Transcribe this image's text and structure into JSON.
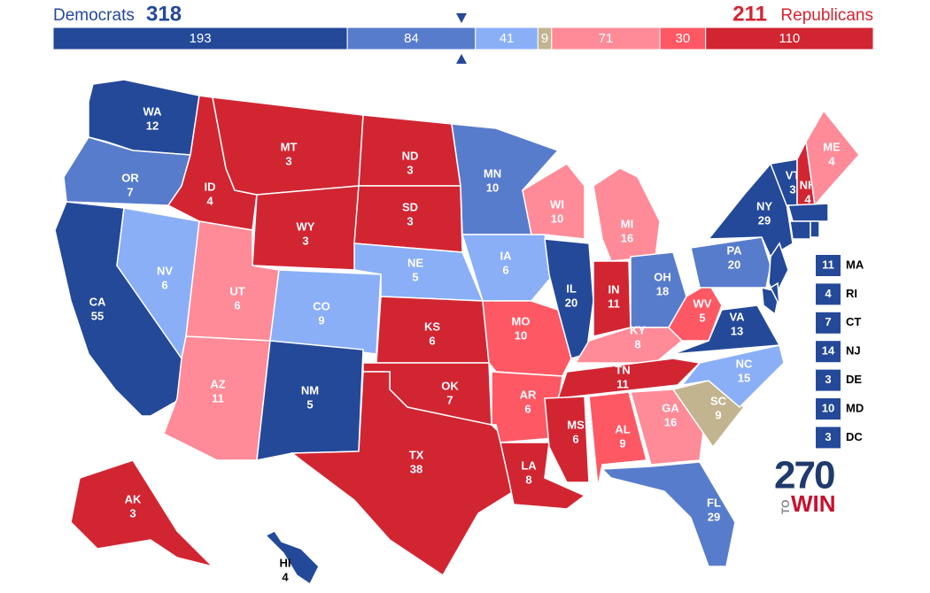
{
  "header": {
    "left_label": "Democrats",
    "left_total": 318,
    "right_total": 211,
    "right_label": "Republicans"
  },
  "bar": {
    "segments": [
      {
        "value": 193,
        "color": "#244999"
      },
      {
        "value": 84,
        "color": "#587ccc"
      },
      {
        "value": 41,
        "color": "#8aaff7"
      },
      {
        "value": 9,
        "color": "#c2b48f"
      },
      {
        "value": 71,
        "color": "#ff8b98"
      },
      {
        "value": 30,
        "color": "#ff5865"
      },
      {
        "value": 110,
        "color": "#d22532"
      }
    ]
  },
  "states": [
    {
      "abbr": "WA",
      "votes": 12,
      "color": "#244999"
    },
    {
      "abbr": "OR",
      "votes": 7,
      "color": "#587ccc"
    },
    {
      "abbr": "CA",
      "votes": 55,
      "color": "#244999"
    },
    {
      "abbr": "NV",
      "votes": 6,
      "color": "#8aaff7"
    },
    {
      "abbr": "ID",
      "votes": 4,
      "color": "#d22532"
    },
    {
      "abbr": "MT",
      "votes": 3,
      "color": "#d22532"
    },
    {
      "abbr": "WY",
      "votes": 3,
      "color": "#d22532"
    },
    {
      "abbr": "UT",
      "votes": 6,
      "color": "#ff8b98"
    },
    {
      "abbr": "AZ",
      "votes": 11,
      "color": "#ff8b98"
    },
    {
      "abbr": "CO",
      "votes": 9,
      "color": "#8aaff7"
    },
    {
      "abbr": "NM",
      "votes": 5,
      "color": "#244999"
    },
    {
      "abbr": "ND",
      "votes": 3,
      "color": "#d22532"
    },
    {
      "abbr": "SD",
      "votes": 3,
      "color": "#d22532"
    },
    {
      "abbr": "NE",
      "votes": 5,
      "color": "#8aaff7"
    },
    {
      "abbr": "KS",
      "votes": 6,
      "color": "#d22532"
    },
    {
      "abbr": "OK",
      "votes": 7,
      "color": "#d22532"
    },
    {
      "abbr": "TX",
      "votes": 38,
      "color": "#d22532"
    },
    {
      "abbr": "MN",
      "votes": 10,
      "color": "#587ccc"
    },
    {
      "abbr": "IA",
      "votes": 6,
      "color": "#8aaff7"
    },
    {
      "abbr": "MO",
      "votes": 10,
      "color": "#ff5865"
    },
    {
      "abbr": "AR",
      "votes": 6,
      "color": "#ff5865"
    },
    {
      "abbr": "LA",
      "votes": 8,
      "color": "#d22532"
    },
    {
      "abbr": "WI",
      "votes": 10,
      "color": "#ff8b98"
    },
    {
      "abbr": "MI",
      "votes": 16,
      "color": "#ff8b98"
    },
    {
      "abbr": "IL",
      "votes": 20,
      "color": "#244999"
    },
    {
      "abbr": "IN",
      "votes": 11,
      "color": "#d22532"
    },
    {
      "abbr": "OH",
      "votes": 18,
      "color": "#587ccc"
    },
    {
      "abbr": "KY",
      "votes": 8,
      "color": "#ff8b98"
    },
    {
      "abbr": "TN",
      "votes": 11,
      "color": "#d22532"
    },
    {
      "abbr": "MS",
      "votes": 6,
      "color": "#d22532"
    },
    {
      "abbr": "AL",
      "votes": 9,
      "color": "#ff5865"
    },
    {
      "abbr": "GA",
      "votes": 16,
      "color": "#ff8b98"
    },
    {
      "abbr": "FL",
      "votes": 29,
      "color": "#587ccc"
    },
    {
      "abbr": "SC",
      "votes": 9,
      "color": "#c2b48f"
    },
    {
      "abbr": "NC",
      "votes": 15,
      "color": "#8aaff7"
    },
    {
      "abbr": "VA",
      "votes": 13,
      "color": "#244999"
    },
    {
      "abbr": "WV",
      "votes": 5,
      "color": "#ff5865"
    },
    {
      "abbr": "PA",
      "votes": 20,
      "color": "#587ccc"
    },
    {
      "abbr": "NY",
      "votes": 29,
      "color": "#244999"
    },
    {
      "abbr": "VT",
      "votes": 3,
      "color": "#244999"
    },
    {
      "abbr": "NH",
      "votes": 4,
      "color": "#d22532"
    },
    {
      "abbr": "ME",
      "votes": 4,
      "color": "#ff8b98"
    },
    {
      "abbr": "AK",
      "votes": 3,
      "color": "#d22532"
    },
    {
      "abbr": "HI",
      "votes": 4,
      "color": "#244999"
    }
  ],
  "small_states": [
    {
      "abbr": "MA",
      "votes": 11,
      "color": "#244999"
    },
    {
      "abbr": "RI",
      "votes": 4,
      "color": "#244999"
    },
    {
      "abbr": "CT",
      "votes": 7,
      "color": "#244999"
    },
    {
      "abbr": "NJ",
      "votes": 14,
      "color": "#244999"
    },
    {
      "abbr": "DE",
      "votes": 3,
      "color": "#244999"
    },
    {
      "abbr": "MD",
      "votes": 10,
      "color": "#244999"
    },
    {
      "abbr": "DC",
      "votes": 3,
      "color": "#244999"
    }
  ],
  "logo": {
    "number": "270",
    "to": "TO",
    "win": "WIN"
  }
}
